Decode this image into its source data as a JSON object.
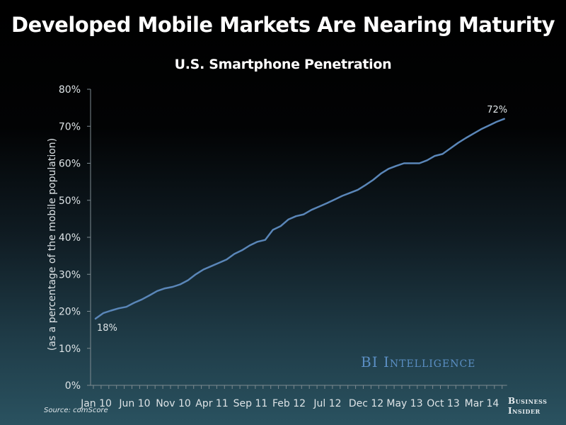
{
  "chart_data": {
    "type": "line",
    "title": "Developed Mobile Markets Are Nearing Maturity",
    "subtitle": "U.S. Smartphone Penetration",
    "xlabel": "",
    "ylabel": "(as a percentage of the mobile population)",
    "ylim": [
      0,
      80
    ],
    "yticks": [
      "0%",
      "10%",
      "20%",
      "30%",
      "40%",
      "50%",
      "60%",
      "70%",
      "80%"
    ],
    "ytick_values": [
      0,
      10,
      20,
      30,
      40,
      50,
      60,
      70,
      80
    ],
    "xtick_labels": [
      "Jan 10",
      "Jun 10",
      "Nov 10",
      "Apr 11",
      "Sep 11",
      "Feb 12",
      "Jul 12",
      "Dec 12",
      "May 13",
      "Oct 13",
      "Mar 14"
    ],
    "xtick_indices": [
      0,
      5,
      10,
      15,
      20,
      25,
      30,
      35,
      40,
      45,
      50
    ],
    "grid": false,
    "legend": "none",
    "series": [
      {
        "name": "U.S. Smartphone Penetration",
        "color": "#5a86b8",
        "values": [
          18,
          19.5,
          20.2,
          20.8,
          21.2,
          22.3,
          23.2,
          24.3,
          25.5,
          26.2,
          26.6,
          27.3,
          28.4,
          30,
          31.3,
          32.2,
          33.1,
          34,
          35.5,
          36.5,
          37.8,
          38.8,
          39.3,
          42,
          43,
          44.8,
          45.7,
          46.2,
          47.4,
          48.3,
          49.2,
          50.2,
          51.2,
          52,
          52.8,
          54.1,
          55.5,
          57.2,
          58.5,
          59.3,
          60,
          60,
          60,
          60.8,
          62,
          62.5,
          64,
          65.5,
          66.8,
          68,
          69.2,
          70.2,
          71.2,
          72
        ]
      }
    ],
    "annotations": [
      {
        "text": "18%",
        "index": 0
      },
      {
        "text": "72%",
        "index": 53
      }
    ]
  },
  "footer": {
    "source": "Source: comScore",
    "watermark": "BI Intelligence",
    "brand_line1": "Business",
    "brand_line2": "Insider"
  }
}
